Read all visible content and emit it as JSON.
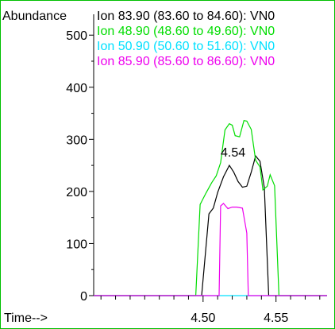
{
  "chart_data": {
    "type": "line",
    "ylabel": "Abundance",
    "xlabel": "Time-->",
    "xlim": [
      4.425,
      4.585
    ],
    "ylim": [
      0,
      540
    ],
    "x_ticks": [
      4.5,
      4.55
    ],
    "x_tick_labels": [
      "4.50",
      "4.55"
    ],
    "y_ticks": [
      0,
      100,
      200,
      300,
      400,
      500
    ],
    "y_tick_labels": [
      "0",
      "100",
      "200",
      "300",
      "400",
      "500"
    ],
    "legend_position": "top",
    "peak_annotation": {
      "text": "4.54",
      "x": 4.536,
      "y": 280
    },
    "series": [
      {
        "name": "Ion  83.90 (83.60 to 84.60): VN0",
        "color": "#000000",
        "points": [
          [
            4.425,
            0
          ],
          [
            4.499,
            0
          ],
          [
            4.504,
            157
          ],
          [
            4.507,
            168
          ],
          [
            4.51,
            198
          ],
          [
            4.514,
            228
          ],
          [
            4.518,
            250
          ],
          [
            4.521,
            237
          ],
          [
            4.524,
            219
          ],
          [
            4.527,
            208
          ],
          [
            4.53,
            210
          ],
          [
            4.533,
            237
          ],
          [
            4.536,
            268
          ],
          [
            4.539,
            258
          ],
          [
            4.542,
            207
          ],
          [
            4.545,
            0
          ],
          [
            4.585,
            0
          ]
        ]
      },
      {
        "name": "Ion  48.90 (48.60 to 49.60): VN0",
        "color": "#00dd00",
        "points": [
          [
            4.425,
            0
          ],
          [
            4.495,
            0
          ],
          [
            4.498,
            175
          ],
          [
            4.502,
            197
          ],
          [
            4.506,
            217
          ],
          [
            4.509,
            230
          ],
          [
            4.512,
            255
          ],
          [
            4.515,
            318
          ],
          [
            4.518,
            330
          ],
          [
            4.52,
            327
          ],
          [
            4.522,
            307
          ],
          [
            4.525,
            305
          ],
          [
            4.528,
            336
          ],
          [
            4.53,
            335
          ],
          [
            4.533,
            319
          ],
          [
            4.536,
            260
          ],
          [
            4.539,
            247
          ],
          [
            4.541,
            203
          ],
          [
            4.544,
            210
          ],
          [
            4.546,
            232
          ],
          [
            4.549,
            211
          ],
          [
            4.552,
            0
          ],
          [
            4.585,
            0
          ]
        ]
      },
      {
        "name": "Ion  50.90 (50.60 to 51.60): VN0",
        "color": "#00e0ff",
        "points": [
          [
            4.425,
            0
          ],
          [
            4.585,
            0
          ]
        ]
      },
      {
        "name": "Ion  85.90 (85.60 to 86.60): VN0",
        "color": "#ee00ee",
        "points": [
          [
            4.425,
            0
          ],
          [
            4.511,
            0
          ],
          [
            4.512,
            172
          ],
          [
            4.514,
            177
          ],
          [
            4.517,
            167
          ],
          [
            4.52,
            170
          ],
          [
            4.523,
            170
          ],
          [
            4.527,
            168
          ],
          [
            4.53,
            120
          ],
          [
            4.531,
            0
          ],
          [
            4.585,
            0
          ]
        ]
      }
    ]
  }
}
